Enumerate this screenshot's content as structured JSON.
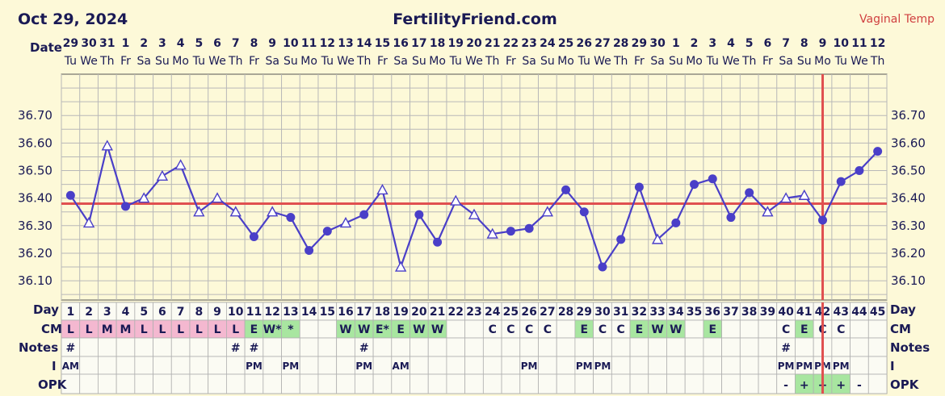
{
  "header": {
    "date": "Oct 29, 2024",
    "site": "FertilityFriend.com",
    "temp_type": "Vaginal Temp"
  },
  "row_labels": {
    "date": "Date",
    "day": "Day",
    "cm": "CM",
    "notes": "Notes",
    "intercourse": "I",
    "opk": "OPK"
  },
  "colors": {
    "background": "#fdf9d8",
    "grid": "#b8b8b8",
    "line": "#4a3fc8",
    "coverline": "#e05050",
    "cm_pink": "#f4b8d0",
    "cm_green": "#a8e6a0",
    "text": "#1a1a55",
    "title_red": "#d04040"
  },
  "chart_data": {
    "type": "line",
    "title": "",
    "xlabel": "Day",
    "ylabel": "",
    "ylim": [
      36.03,
      36.85
    ],
    "y_ticks": [
      "36.10",
      "36.20",
      "36.30",
      "36.40",
      "36.50",
      "36.60",
      "36.70"
    ],
    "coverline": 36.38,
    "ovulation_day": 42,
    "dates": [
      "29",
      "30",
      "31",
      "1",
      "2",
      "3",
      "4",
      "5",
      "6",
      "7",
      "8",
      "9",
      "10",
      "11",
      "12",
      "13",
      "14",
      "15",
      "16",
      "17",
      "18",
      "19",
      "20",
      "21",
      "22",
      "23",
      "24",
      "25",
      "26",
      "27",
      "28",
      "29",
      "30",
      "1",
      "2",
      "3",
      "4",
      "5",
      "6",
      "7",
      "8",
      "9",
      "10",
      "11",
      "12"
    ],
    "weekdays": [
      "Tu",
      "We",
      "Th",
      "Fr",
      "Sa",
      "Su",
      "Mo",
      "Tu",
      "We",
      "Th",
      "Fr",
      "Sa",
      "Su",
      "Mo",
      "Tu",
      "We",
      "Th",
      "Fr",
      "Sa",
      "Su",
      "Mo",
      "Tu",
      "We",
      "Th",
      "Fr",
      "Sa",
      "Su",
      "Mo",
      "Tu",
      "We",
      "Th",
      "Fr",
      "Sa",
      "Su",
      "Mo",
      "Tu",
      "We",
      "Th",
      "Fr",
      "Sa",
      "Su",
      "Mo",
      "Tu",
      "We",
      "Th"
    ],
    "days": [
      1,
      2,
      3,
      4,
      5,
      6,
      7,
      8,
      9,
      10,
      11,
      12,
      13,
      14,
      15,
      16,
      17,
      18,
      19,
      20,
      21,
      22,
      23,
      24,
      25,
      26,
      27,
      28,
      29,
      30,
      31,
      32,
      33,
      34,
      35,
      36,
      37,
      38,
      39,
      40,
      41,
      42,
      43,
      44,
      45
    ],
    "series": [
      {
        "values": [
          36.41,
          36.31,
          36.59,
          36.37,
          36.4,
          36.48,
          36.52,
          36.35,
          36.4,
          36.35,
          36.26,
          36.35,
          36.33,
          36.21,
          36.28,
          36.31,
          36.34,
          36.43,
          36.15,
          36.34,
          36.24,
          36.39,
          36.34,
          36.27,
          36.28,
          36.29,
          36.35,
          36.43,
          36.35,
          36.15,
          36.25,
          36.44,
          36.25,
          36.31,
          36.45,
          36.47,
          36.33,
          36.42,
          36.35,
          36.4,
          36.41,
          36.32,
          36.46,
          36.5,
          36.57
        ],
        "markers": [
          "c",
          "t",
          "t",
          "c",
          "t",
          "t",
          "t",
          "t",
          "t",
          "t",
          "c",
          "t",
          "c",
          "c",
          "c",
          "t",
          "c",
          "t",
          "t",
          "c",
          "c",
          "t",
          "t",
          "t",
          "c",
          "c",
          "t",
          "c",
          "c",
          "c",
          "c",
          "c",
          "t",
          "c",
          "c",
          "c",
          "c",
          "c",
          "t",
          "t",
          "t",
          "c",
          "c",
          "c",
          "c"
        ]
      }
    ],
    "cm": [
      "L",
      "L",
      "M",
      "M",
      "L",
      "L",
      "L",
      "L",
      "L",
      "L",
      "E",
      "W*",
      "*",
      "",
      "",
      "W",
      "W",
      "E*",
      "E",
      "W",
      "W",
      "",
      "",
      "C",
      "C",
      "C",
      "C",
      "",
      "E",
      "C",
      "C",
      "E",
      "W",
      "W",
      "",
      "E",
      "",
      "",
      "",
      "C",
      "E",
      "C",
      "C",
      "",
      ""
    ],
    "notes": [
      "#",
      "",
      "",
      "",
      "",
      "",
      "",
      "",
      "",
      "#",
      "#",
      "",
      "",
      "",
      "",
      "",
      "#",
      "",
      "",
      "",
      "",
      "",
      "",
      "",
      "",
      "",
      "",
      "",
      "",
      "",
      "",
      "",
      "",
      "",
      "",
      "",
      "",
      "",
      "",
      "#",
      "",
      "",
      "",
      "",
      ""
    ],
    "intercourse": [
      "AM",
      "",
      "",
      "",
      "",
      "",
      "",
      "",
      "",
      "",
      "PM",
      "",
      "PM",
      "",
      "",
      "",
      "PM",
      "",
      "AM",
      "",
      "",
      "",
      "",
      "",
      "",
      "PM",
      "",
      "",
      "PM",
      "PM",
      "",
      "",
      "",
      "",
      "",
      "",
      "",
      "",
      "",
      "PM",
      "PM",
      "PM",
      "PM",
      "",
      ""
    ],
    "opk": [
      "",
      "",
      "",
      "",
      "",
      "",
      "",
      "",
      "",
      "",
      "",
      "",
      "",
      "",
      "",
      "",
      "",
      "",
      "",
      "",
      "",
      "",
      "",
      "",
      "",
      "",
      "",
      "",
      "",
      "",
      "",
      "",
      "",
      "",
      "",
      "",
      "",
      "",
      "",
      "-",
      "+",
      "+",
      "+",
      "-",
      ""
    ]
  }
}
